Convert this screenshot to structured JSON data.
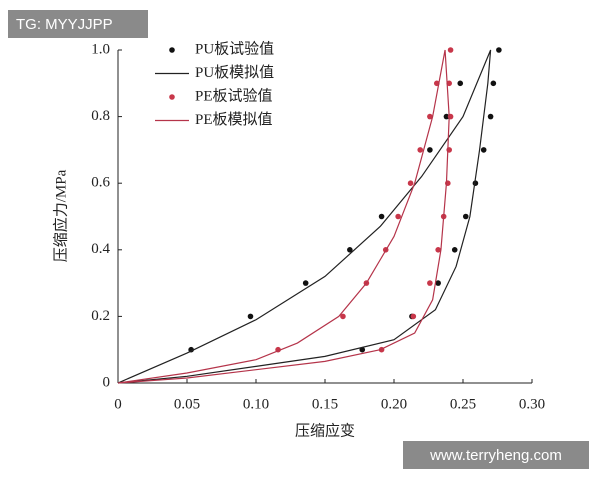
{
  "chart_data": {
    "type": "scatter-line",
    "x_label": "压缩应变",
    "y_label": "压缩应力/MPa",
    "xlim": [
      0,
      0.3
    ],
    "ylim": [
      0,
      1.0
    ],
    "xticks": [
      0,
      0.05,
      {
        "value": 0.1,
        "label": "0.10"
      },
      0.15,
      {
        "value": 0.2,
        "label": "0.20"
      },
      0.25,
      {
        "value": 0.3,
        "label": "0.30"
      }
    ],
    "yticks": [
      0,
      0.2,
      0.4,
      0.6,
      0.8,
      {
        "value": 1.0,
        "label": "1.0"
      }
    ],
    "grid": false,
    "legend": "upper left",
    "series": [
      {
        "name": "PU板试验值",
        "type": "scatter",
        "color": "#111111",
        "x": [
          0.053,
          0.096,
          0.136,
          0.168,
          0.191,
          0.226,
          0.238,
          0.248,
          0.276,
          0.272,
          0.27,
          0.265,
          0.259,
          0.252,
          0.244,
          0.232,
          0.213,
          0.177
        ],
        "values": [
          0.1,
          0.2,
          0.3,
          0.4,
          0.5,
          0.7,
          0.8,
          0.9,
          1.0,
          0.9,
          0.8,
          0.7,
          0.6,
          0.5,
          0.4,
          0.3,
          0.2,
          0.1
        ]
      },
      {
        "name": "PU板模拟值",
        "type": "line",
        "color": "#222222",
        "x": [
          0,
          0.05,
          0.1,
          0.15,
          0.19,
          0.22,
          0.25,
          0.27,
          0.268,
          0.262,
          0.255,
          0.245,
          0.23,
          0.2,
          0.15,
          0.1,
          0.05,
          0
        ],
        "values": [
          0,
          0.09,
          0.19,
          0.32,
          0.47,
          0.62,
          0.8,
          1.0,
          0.9,
          0.7,
          0.5,
          0.35,
          0.22,
          0.13,
          0.08,
          0.05,
          0.02,
          0
        ]
      },
      {
        "name": "PE板试验值",
        "type": "scatter",
        "color": "#c8374a",
        "x": [
          0.116,
          0.163,
          0.18,
          0.194,
          0.203,
          0.212,
          0.219,
          0.226,
          0.231,
          0.241,
          0.24,
          0.241,
          0.24,
          0.239,
          0.236,
          0.232,
          0.226,
          0.214,
          0.191
        ],
        "values": [
          0.1,
          0.2,
          0.3,
          0.4,
          0.5,
          0.6,
          0.7,
          0.8,
          0.9,
          1.0,
          0.9,
          0.8,
          0.7,
          0.6,
          0.5,
          0.4,
          0.3,
          0.2,
          0.1
        ]
      },
      {
        "name": "PE板模拟值",
        "type": "line",
        "color": "#b5344a",
        "x": [
          0,
          0.05,
          0.1,
          0.13,
          0.16,
          0.18,
          0.2,
          0.215,
          0.228,
          0.237,
          0.24,
          0.238,
          0.234,
          0.228,
          0.215,
          0.19,
          0.15,
          0.1,
          0.05,
          0
        ],
        "values": [
          0,
          0.03,
          0.07,
          0.12,
          0.2,
          0.3,
          0.44,
          0.6,
          0.8,
          1.0,
          0.8,
          0.6,
          0.4,
          0.25,
          0.15,
          0.1,
          0.065,
          0.04,
          0.015,
          0
        ]
      }
    ],
    "annotations": [
      "TG: MYYJJPP",
      "www.terryheng.com"
    ]
  }
}
